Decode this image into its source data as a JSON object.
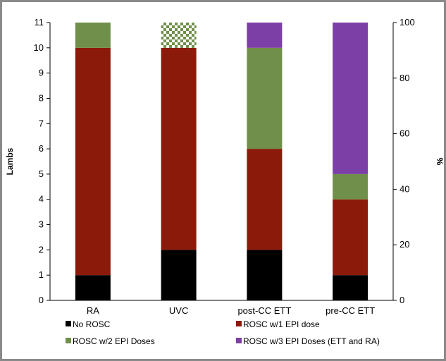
{
  "chart_data": {
    "type": "bar",
    "stacked": true,
    "categories": [
      "RA",
      "UVC",
      "post-CC ETT",
      "pre-CC ETT"
    ],
    "series": [
      {
        "name": "No ROSC",
        "values": [
          1,
          2,
          2,
          1
        ],
        "color": "#000000"
      },
      {
        "name": "ROSC w/1 EPI dose",
        "values": [
          9,
          8,
          4,
          3
        ],
        "color": "#8b1a0a"
      },
      {
        "name": "ROSC w/2 EPI Doses",
        "values": [
          1,
          1,
          4,
          1
        ],
        "color": "#6f8f4a",
        "patterned_categories": [
          "UVC"
        ]
      },
      {
        "name": "ROSC w/3 EPI Doses (ETT and RA)",
        "values": [
          0,
          0,
          1,
          6
        ],
        "color": "#7b3fa6"
      }
    ],
    "ylabel": "Lambs",
    "y2label": "%",
    "ylim": [
      0,
      11
    ],
    "y2lim": [
      0,
      100
    ],
    "yticks": [
      "0",
      "1",
      "2",
      "3",
      "4",
      "5",
      "6",
      "7",
      "8",
      "9",
      "10",
      "11"
    ],
    "y2ticks": [
      "0",
      "20",
      "40",
      "60",
      "80",
      "100"
    ],
    "grid": false,
    "legend_position": "bottom"
  }
}
